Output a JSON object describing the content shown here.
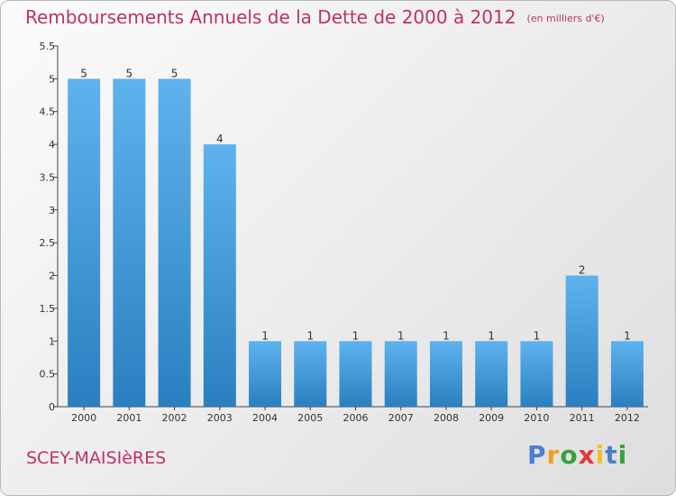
{
  "header": {
    "title": "Remboursements Annuels de la Dette de 2000 à 2012",
    "unit": "(en milliers d'€)"
  },
  "footer": {
    "city": "SCEY-MAISIèRES",
    "logo": [
      "P",
      "r",
      "o",
      "x",
      "i",
      "t",
      "i"
    ]
  },
  "colors": {
    "title": "#c0306a",
    "bar_top": "#5eb3ee",
    "bar_bottom": "#2a7fc0",
    "logo": [
      "#4a7fd0",
      "#f0a020",
      "#3aa040",
      "#e03a3a",
      "#f0c020",
      "#4a7fd0",
      "#3aa040"
    ]
  },
  "chart_data": {
    "type": "bar",
    "categories": [
      "2000",
      "2001",
      "2002",
      "2003",
      "2004",
      "2005",
      "2006",
      "2007",
      "2008",
      "2009",
      "2010",
      "2011",
      "2012"
    ],
    "values": [
      5,
      5,
      5,
      4,
      1,
      1,
      1,
      1,
      1,
      1,
      1,
      2,
      1
    ],
    "ylim": [
      0,
      5.5
    ],
    "yticks": [
      "0",
      "0.5",
      "1",
      "1.5",
      "2",
      "2.5",
      "3",
      "3.5",
      "4",
      "4.5",
      "5",
      "5.5"
    ],
    "grid": false,
    "title": "Remboursements Annuels de la Dette de 2000 à 2012",
    "xlabel": "",
    "ylabel": ""
  }
}
